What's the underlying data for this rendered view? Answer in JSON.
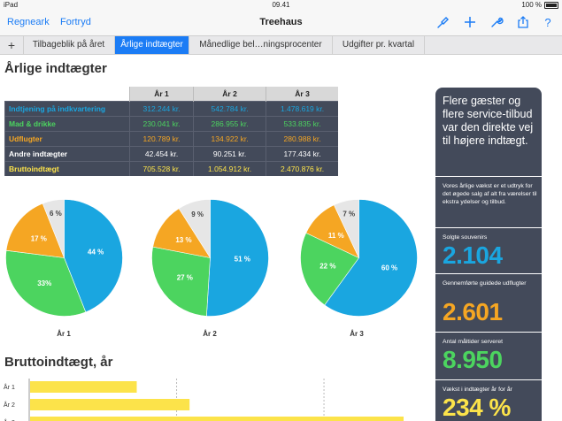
{
  "status": {
    "device": "iPad",
    "time": "09.41",
    "battery": "100 %"
  },
  "toolbar": {
    "back_label": "Regneark",
    "undo_label": "Fortryd",
    "title": "Treehaus"
  },
  "icons": {
    "format": "paintbrush-icon",
    "add": "plus-icon",
    "tools": "wrench-icon",
    "share": "share-icon",
    "help": "help-icon"
  },
  "tabs": [
    {
      "label": "Tilbageblik på året"
    },
    {
      "label": "Årlige indtægter"
    },
    {
      "label": "Månedlige bel…ningsprocenter"
    },
    {
      "label": "Udgifter pr. kvartal"
    }
  ],
  "colors": {
    "accent": "#1b7cf5",
    "blue": "#1aa6e0",
    "green": "#4cd45f",
    "orange": "#f5a623",
    "gray": "#e6e6e6",
    "yellow": "#fce34a",
    "dark": "#434a5a"
  },
  "main": {
    "title": "Årlige indtægter",
    "bar_title": "Bruttoindtægt, år"
  },
  "table": {
    "headers": [
      "",
      "År 1",
      "År 2",
      "År 3"
    ],
    "rows": [
      {
        "label": "Indtjening på indkvartering",
        "values": [
          "312.244 kr.",
          "542.784 kr.",
          "1.478.619 kr."
        ],
        "color": "#1aa6e0"
      },
      {
        "label": "Mad & drikke",
        "values": [
          "230.041 kr.",
          "286.955 kr.",
          "533.835 kr."
        ],
        "color": "#4cd45f"
      },
      {
        "label": "Udflugter",
        "values": [
          "120.789 kr.",
          "134.922 kr.",
          "280.988 kr."
        ],
        "color": "#f5a623"
      },
      {
        "label": "Andre indtægter",
        "values": [
          "42.454 kr.",
          "90.251 kr.",
          "177.434 kr."
        ],
        "color": "#ffffff"
      },
      {
        "label": "Bruttoindtægt",
        "values": [
          "705.528 kr.",
          "1.054.912 kr.",
          "2.470.876 kr."
        ],
        "color": "#fce34a"
      }
    ]
  },
  "chart_data": [
    {
      "type": "pie",
      "title": "År 1",
      "labels": [
        "44 %",
        "33%",
        "17 %",
        "6 %"
      ],
      "values": [
        44,
        33,
        17,
        6
      ],
      "colors": [
        "#1aa6e0",
        "#4cd45f",
        "#f5a623",
        "#e6e6e6"
      ]
    },
    {
      "type": "pie",
      "title": "År 2",
      "labels": [
        "51 %",
        "27 %",
        "13 %",
        "9 %"
      ],
      "values": [
        51,
        27,
        13,
        9
      ],
      "colors": [
        "#1aa6e0",
        "#4cd45f",
        "#f5a623",
        "#e6e6e6"
      ]
    },
    {
      "type": "pie",
      "title": "År 3",
      "labels": [
        "60 %",
        "22 %",
        "11 %",
        "7 %"
      ],
      "values": [
        60,
        22,
        11,
        7
      ],
      "colors": [
        "#1aa6e0",
        "#4cd45f",
        "#f5a623",
        "#e6e6e6"
      ]
    },
    {
      "type": "bar",
      "title": "Bruttoindtægt, år",
      "categories": [
        "År 1",
        "År 2",
        "År 3"
      ],
      "values": [
        705528,
        1054912,
        2470876
      ],
      "xlim": [
        0,
        2500000
      ],
      "color": "#fce34a"
    }
  ],
  "sidebar": {
    "headline": "Flere gæster og flere service-tilbud var den direkte vej til højere indtægt.",
    "intro": "Vores årlige vækst er et udtryk for det øgede salg af alt fra værelser til  ekstra ydelser og tilbud.",
    "stats": [
      {
        "label": "Solgte souvenirs",
        "value": "2.104",
        "color": "#1aa6e0"
      },
      {
        "label": "Gennemførte guidede udflugter",
        "value": "2.601",
        "color": "#f5a623"
      },
      {
        "label": "Antal måltider serveret",
        "value": "8.950",
        "color": "#4cd45f"
      },
      {
        "label": "Vækst i indtægter år for år",
        "value": "234 %",
        "color": "#fce34a"
      }
    ]
  }
}
